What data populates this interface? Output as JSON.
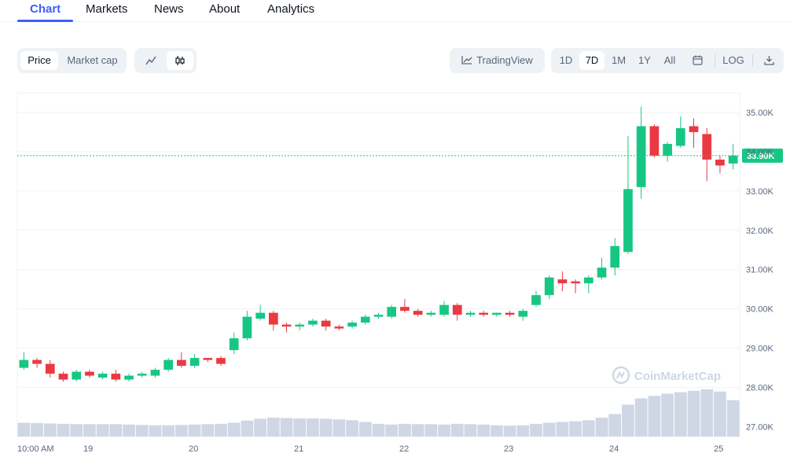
{
  "tabs": [
    {
      "label": "Chart",
      "active": true
    },
    {
      "label": "Markets"
    },
    {
      "label": "News"
    },
    {
      "label": "About"
    },
    {
      "label": "Analytics"
    }
  ],
  "toolbar": {
    "price_label": "Price",
    "market_cap_label": "Market cap",
    "line_icon": "line-chart-icon",
    "candle_icon": "candlestick-icon",
    "tradingview_label": "TradingView",
    "ranges": [
      "1D",
      "7D",
      "1M",
      "1Y",
      "All"
    ],
    "selected_range": "7D",
    "calendar_icon": "calendar-icon",
    "log_label": "LOG",
    "download_icon": "download-icon"
  },
  "watermark": "CoinMarketCap",
  "chart_data": {
    "type": "candlestick",
    "y_ticks": [
      "35.00K",
      "34.00K",
      "33.00K",
      "32.00K",
      "31.00K",
      "30.00K",
      "29.00K",
      "28.00K",
      "27.00K"
    ],
    "y_tick_values": [
      35000,
      34000,
      33000,
      32000,
      31000,
      30000,
      29000,
      28000,
      27000
    ],
    "ylim": [
      26750,
      35500
    ],
    "x_labels": [
      "10:00 AM",
      "19",
      "20",
      "21",
      "22",
      "23",
      "24",
      "25"
    ],
    "current_price": 33900,
    "current_price_label": "33.90K",
    "colors": {
      "up": "#16c784",
      "down": "#ea3943",
      "volume": "#cfd6e4",
      "price_line": "#16c784"
    },
    "candles": [
      [
        28500,
        28700,
        28900,
        28450
      ],
      [
        28700,
        28600,
        28750,
        28500
      ],
      [
        28600,
        28350,
        28700,
        28250
      ],
      [
        28350,
        28200,
        28400,
        28150
      ],
      [
        28200,
        28400,
        28450,
        28150
      ],
      [
        28400,
        28300,
        28450,
        28250
      ],
      [
        28250,
        28350,
        28400,
        28200
      ],
      [
        28350,
        28200,
        28450,
        28150
      ],
      [
        28200,
        28300,
        28350,
        28150
      ],
      [
        28300,
        28350,
        28400,
        28250
      ],
      [
        28300,
        28450,
        28500,
        28250
      ],
      [
        28450,
        28700,
        28750,
        28400
      ],
      [
        28700,
        28550,
        28900,
        28500
      ],
      [
        28550,
        28750,
        28850,
        28500
      ],
      [
        28750,
        28700,
        28750,
        28650
      ],
      [
        28750,
        28600,
        28800,
        28550
      ],
      [
        28950,
        29250,
        29400,
        28850
      ],
      [
        29250,
        29800,
        29950,
        29200
      ],
      [
        29750,
        29900,
        30100,
        29700
      ],
      [
        29900,
        29600,
        29950,
        29450
      ],
      [
        29600,
        29550,
        29650,
        29400
      ],
      [
        29550,
        29600,
        29650,
        29450
      ],
      [
        29600,
        29700,
        29750,
        29550
      ],
      [
        29700,
        29550,
        29750,
        29450
      ],
      [
        29550,
        29500,
        29600,
        29450
      ],
      [
        29550,
        29650,
        29700,
        29500
      ],
      [
        29650,
        29800,
        29850,
        29600
      ],
      [
        29800,
        29850,
        29900,
        29750
      ],
      [
        29800,
        30050,
        30100,
        29750
      ],
      [
        30050,
        29950,
        30250,
        29900
      ],
      [
        29950,
        29850,
        30000,
        29800
      ],
      [
        29850,
        29900,
        29950,
        29800
      ],
      [
        29850,
        30100,
        30200,
        29800
      ],
      [
        30100,
        29850,
        30150,
        29700
      ],
      [
        29850,
        29900,
        29950,
        29800
      ],
      [
        29900,
        29850,
        29950,
        29800
      ],
      [
        29850,
        29900,
        29900,
        29800
      ],
      [
        29900,
        29850,
        29950,
        29800
      ],
      [
        29800,
        29950,
        30000,
        29700
      ],
      [
        30100,
        30350,
        30450,
        30050
      ],
      [
        30350,
        30800,
        30850,
        30250
      ],
      [
        30750,
        30650,
        30950,
        30450
      ],
      [
        30700,
        30650,
        30750,
        30400
      ],
      [
        30650,
        30800,
        30850,
        30400
      ],
      [
        30800,
        31050,
        31300,
        30750
      ],
      [
        31050,
        31600,
        31800,
        30850
      ],
      [
        31450,
        33050,
        34400,
        31400
      ],
      [
        33100,
        34650,
        35150,
        32800
      ],
      [
        34650,
        33900,
        34700,
        33850
      ],
      [
        33900,
        34200,
        34250,
        33750
      ],
      [
        34150,
        34600,
        34900,
        34100
      ],
      [
        34650,
        34500,
        34850,
        34100
      ],
      [
        34450,
        33800,
        34600,
        33250
      ],
      [
        33800,
        33650,
        33900,
        33450
      ],
      [
        33700,
        33900,
        34200,
        33550
      ]
    ],
    "volumes": [
      38,
      37,
      36,
      35,
      34,
      34,
      34,
      34,
      33,
      32,
      31,
      31,
      32,
      33,
      34,
      35,
      38,
      44,
      49,
      52,
      51,
      50,
      50,
      49,
      47,
      45,
      40,
      35,
      33,
      35,
      34,
      34,
      33,
      35,
      34,
      33,
      31,
      30,
      31,
      35,
      38,
      40,
      42,
      45,
      52,
      62,
      88,
      105,
      112,
      118,
      122,
      126,
      130,
      124,
      100
    ]
  }
}
